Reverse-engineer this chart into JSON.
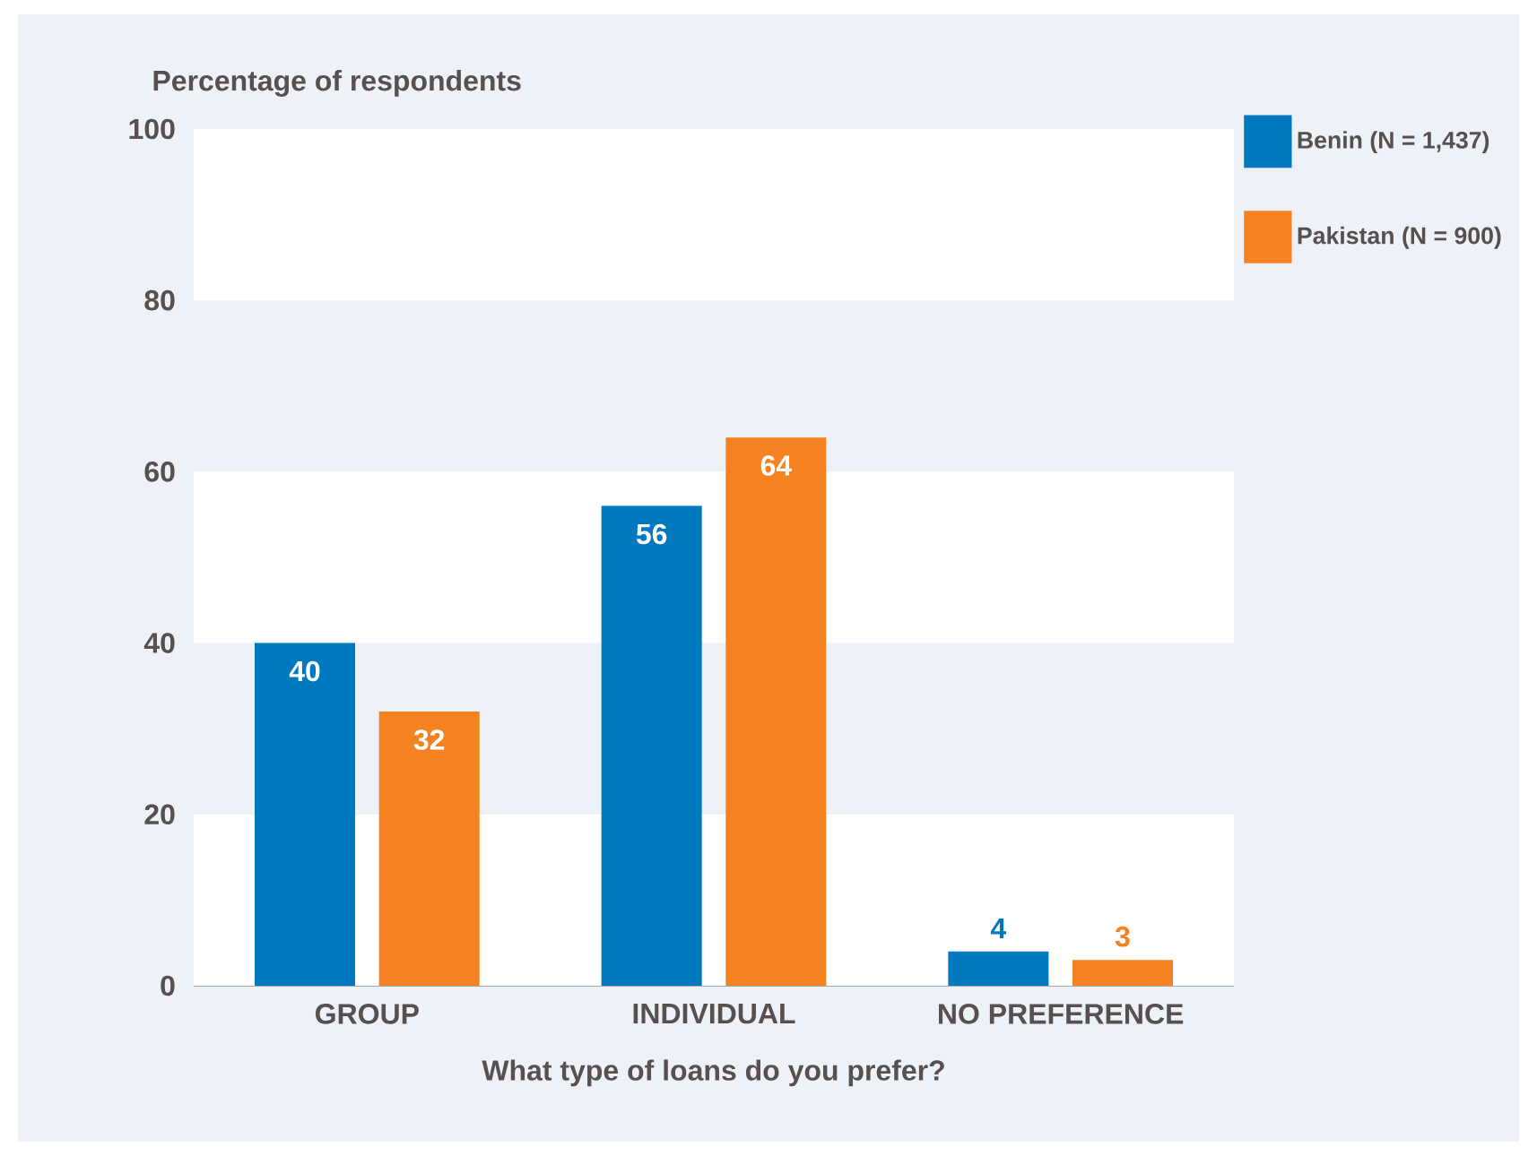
{
  "chart_data": {
    "type": "bar",
    "ylabel": "Percentage of respondents",
    "xlabel": "What type of loans do you prefer?",
    "categories": [
      "GROUP",
      "INDIVIDUAL",
      "NO PREFERENCE"
    ],
    "series": [
      {
        "name": "Benin (N = 1,437)",
        "color": "#0079c1",
        "values": [
          40,
          56,
          4
        ]
      },
      {
        "name": "Pakistan (N = 900)",
        "color": "#f58220",
        "values": [
          32,
          64,
          3
        ]
      }
    ],
    "ylim": [
      0,
      100
    ],
    "yticks": [
      0,
      20,
      40,
      60,
      80,
      100
    ],
    "legend": "top right",
    "data_labels": true,
    "bands": [
      {
        "axis": "y",
        "from": 0,
        "to": 20,
        "color": "#ffffff"
      },
      {
        "axis": "y",
        "from": 40,
        "to": 60,
        "color": "#ffffff"
      },
      {
        "axis": "y",
        "from": 80,
        "to": 100,
        "color": "#ffffff"
      }
    ]
  }
}
